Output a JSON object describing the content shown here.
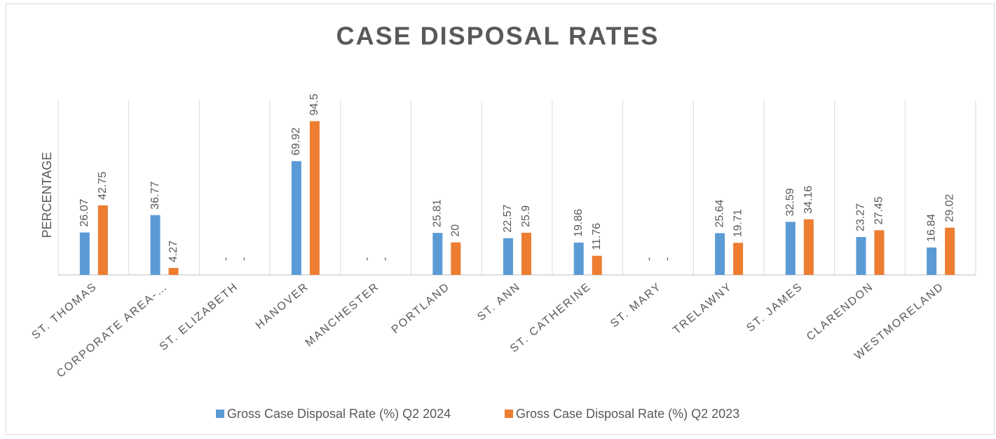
{
  "chart_data": {
    "type": "bar",
    "title": "CASE DISPOSAL RATES",
    "y_label": "PERCENTAGE",
    "categories": [
      "ST. THOMAS",
      "CORPORATE AREA-…",
      "ST. ELIZABETH",
      "HANOVER",
      "MANCHESTER",
      "PORTLAND",
      "ST. ANN",
      "ST. CATHERINE",
      "ST. MARY",
      "TRELAWNY",
      "ST. JAMES",
      "CLARENDON",
      "WESTMORELAND"
    ],
    "series": [
      {
        "name": "Gross Case Disposal Rate (%) Q2 2024",
        "color": "#5b9bd5",
        "values": [
          26.07,
          36.77,
          null,
          69.92,
          null,
          25.81,
          22.57,
          19.86,
          null,
          25.64,
          32.59,
          23.27,
          16.84
        ],
        "value_labels": [
          "26.07",
          "36.77",
          "-",
          "69.92",
          "-",
          "25.81",
          "22.57",
          "19.86",
          "-",
          "25.64",
          "32.59",
          "23.27",
          "16.84"
        ]
      },
      {
        "name": "Gross Case Disposal Rate (%) Q2 2023",
        "color": "#ed7d31",
        "values": [
          42.75,
          4.27,
          null,
          94.5,
          null,
          20,
          25.9,
          11.76,
          null,
          19.71,
          34.16,
          27.45,
          29.02
        ],
        "value_labels": [
          "42.75",
          "4.27",
          "-",
          "94.5",
          "-",
          "20",
          "25.9",
          "11.76",
          "-",
          "19.71",
          "34.16",
          "27.45",
          "29.02"
        ]
      }
    ],
    "ylim": [
      0,
      100
    ],
    "legend": "bottom"
  }
}
